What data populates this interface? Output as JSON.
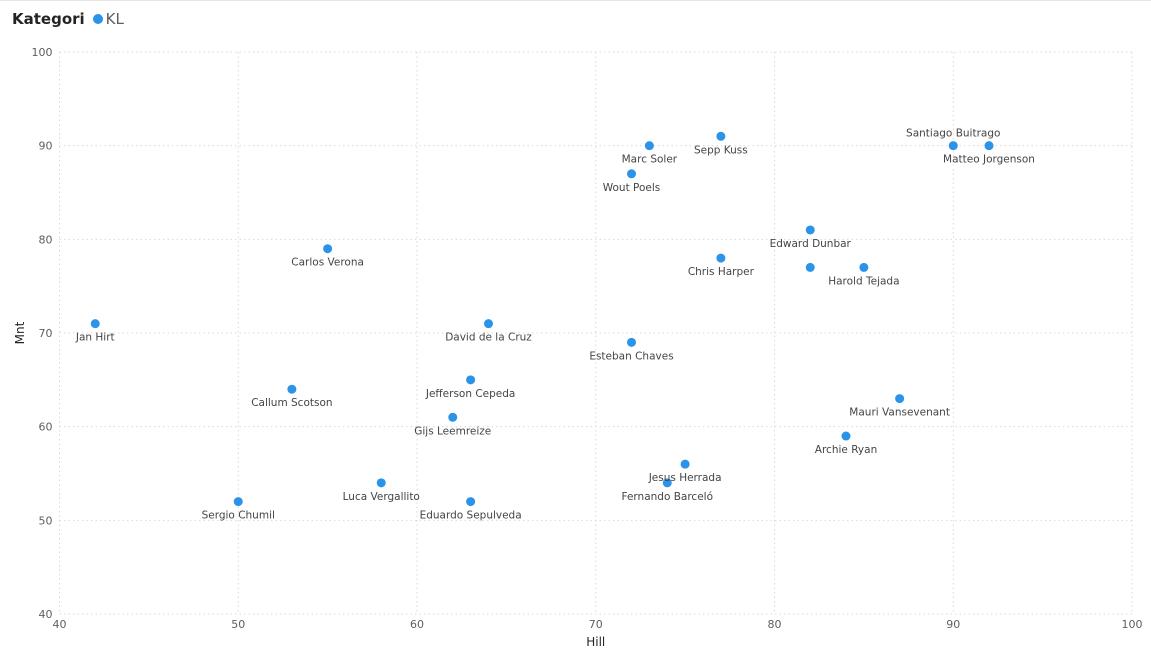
{
  "legend": {
    "title": "Kategori",
    "entry": "KL"
  },
  "colors": {
    "point": "#2b93e8",
    "grid": "#d9d9d9",
    "text": "#605e5c"
  },
  "chart_data": {
    "type": "scatter",
    "title": "",
    "xlabel": "Hill",
    "ylabel": "Mnt",
    "xlim": [
      40,
      100
    ],
    "ylim": [
      40,
      100
    ],
    "xticks": [
      40,
      50,
      60,
      70,
      80,
      90,
      100
    ],
    "yticks": [
      40,
      50,
      60,
      70,
      80,
      90,
      100
    ],
    "grid": true,
    "legend_position": "top-left",
    "series": [
      {
        "name": "KL",
        "points": [
          {
            "label": "Jan Hirt",
            "x": 42,
            "y": 71,
            "label_pos": "below"
          },
          {
            "label": "Sergio Chumil",
            "x": 50,
            "y": 52,
            "label_pos": "below"
          },
          {
            "label": "Callum Scotson",
            "x": 53,
            "y": 64,
            "label_pos": "below"
          },
          {
            "label": "Carlos Verona",
            "x": 55,
            "y": 79,
            "label_pos": "below"
          },
          {
            "label": "Luca Vergallito",
            "x": 58,
            "y": 54,
            "label_pos": "below"
          },
          {
            "label": "Gijs Leemreize",
            "x": 62,
            "y": 61,
            "label_pos": "below"
          },
          {
            "label": "Jefferson Cepeda",
            "x": 63,
            "y": 65,
            "label_pos": "below"
          },
          {
            "label": "Eduardo Sepulveda",
            "x": 63,
            "y": 52,
            "label_pos": "below"
          },
          {
            "label": "David de la Cruz",
            "x": 64,
            "y": 71,
            "label_pos": "below"
          },
          {
            "label": "Esteban Chaves",
            "x": 72,
            "y": 69,
            "label_pos": "below"
          },
          {
            "label": "Wout Poels",
            "x": 72,
            "y": 87,
            "label_pos": "below"
          },
          {
            "label": "Marc Soler",
            "x": 73,
            "y": 90,
            "label_pos": "below"
          },
          {
            "label": "Fernando Barceló",
            "x": 74,
            "y": 54,
            "label_pos": "below"
          },
          {
            "label": "Jesus Herrada",
            "x": 75,
            "y": 56,
            "label_pos": "below"
          },
          {
            "label": "Sepp Kuss",
            "x": 77,
            "y": 91,
            "label_pos": "below"
          },
          {
            "label": "Chris Harper",
            "x": 77,
            "y": 78,
            "label_pos": "below"
          },
          {
            "label": "Edward Dunbar",
            "x": 82,
            "y": 81,
            "label_pos": "below"
          },
          {
            "label": "",
            "x": 82,
            "y": 77,
            "label_pos": "below"
          },
          {
            "label": "Archie Ryan",
            "x": 84,
            "y": 59,
            "label_pos": "below"
          },
          {
            "label": "Harold Tejada",
            "x": 85,
            "y": 77,
            "label_pos": "below"
          },
          {
            "label": "Mauri Vansevenant",
            "x": 87,
            "y": 63,
            "label_pos": "below"
          },
          {
            "label": "Santiago Buitrago",
            "x": 90,
            "y": 90,
            "label_pos": "above"
          },
          {
            "label": "Matteo Jorgenson",
            "x": 92,
            "y": 90,
            "label_pos": "below"
          }
        ]
      }
    ]
  }
}
